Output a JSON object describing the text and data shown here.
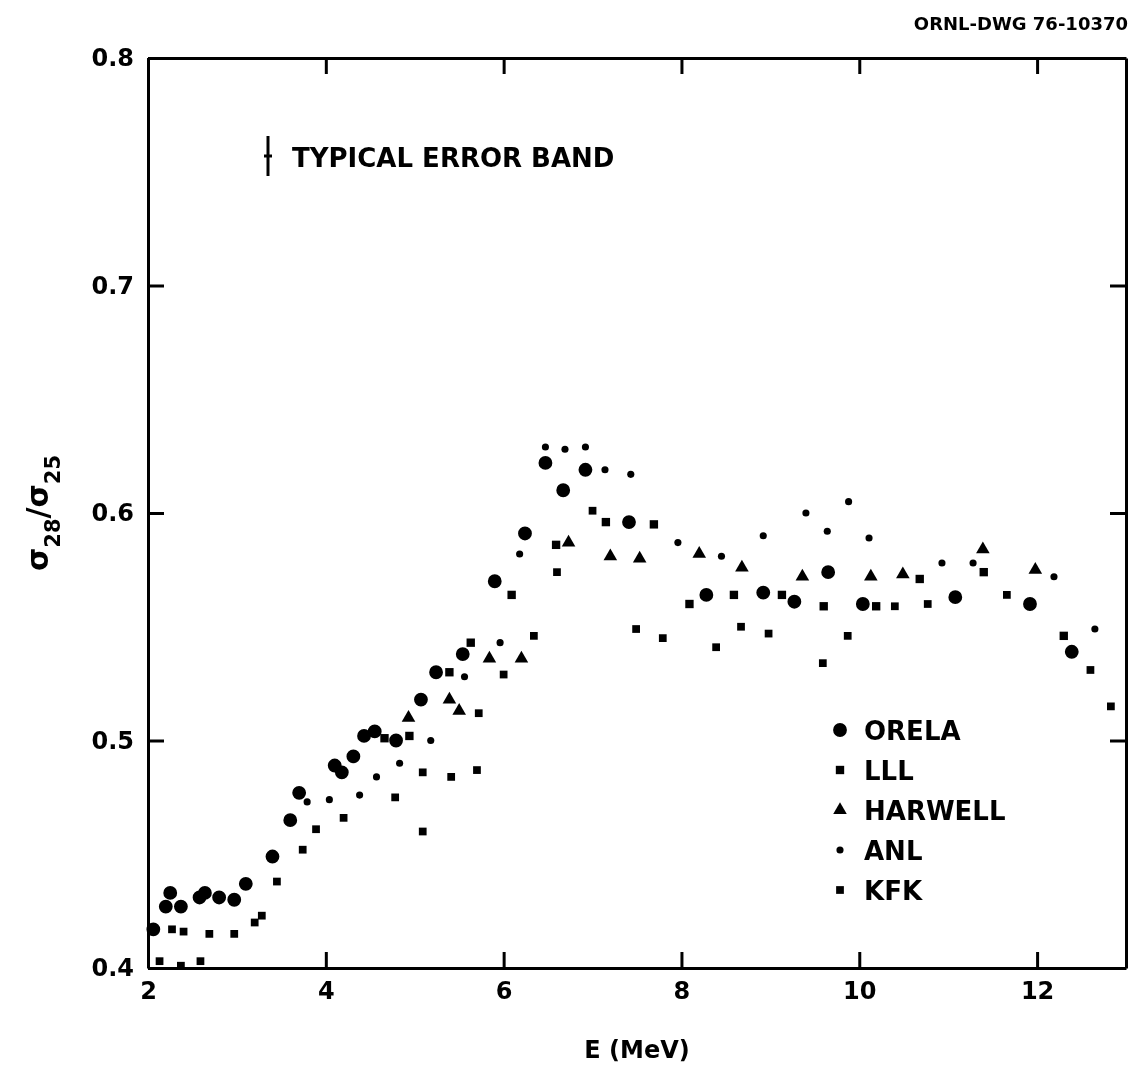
{
  "chart_data": {
    "type": "scatter",
    "xlabel": "E (MeV)",
    "ylabel": "σ$_{28}$/σ$_{25}$",
    "annotations": [
      "ORNL-DWG 76-10370",
      "TYPICAL ERROR BAND"
    ],
    "xlim": [
      2,
      13
    ],
    "xticks": [
      2,
      4,
      6,
      8,
      10,
      12
    ],
    "ylim": [
      0.4,
      0.8
    ],
    "yticks": [
      0.4,
      0.5,
      0.6,
      0.7,
      0.8
    ],
    "grid": false,
    "legend": "bottom right",
    "series": [
      {
        "name": "ORELA",
        "color": "#000000",
        "marker": "circle",
        "x": [
          2.06,
          2.2,
          2.25,
          2.37,
          2.58,
          2.64,
          2.8,
          2.97,
          3.1,
          3.4,
          3.6,
          3.7,
          4.1,
          4.18,
          4.31,
          4.43,
          4.55,
          4.79,
          5.07,
          5.24,
          5.54,
          5.9,
          6.24,
          6.47,
          6.67,
          6.92,
          7.41,
          8.28,
          8.92,
          9.27,
          9.65,
          10.04,
          11.08,
          11.92,
          12.39
        ],
        "values": [
          0.417,
          0.427,
          0.433,
          0.427,
          0.431,
          0.433,
          0.431,
          0.43,
          0.437,
          0.449,
          0.465,
          0.477,
          0.489,
          0.486,
          0.493,
          0.502,
          0.504,
          0.5,
          0.518,
          0.53,
          0.538,
          0.57,
          0.591,
          0.622,
          0.61,
          0.619,
          0.596,
          0.564,
          0.565,
          0.561,
          0.574,
          0.56,
          0.563,
          0.56,
          0.539
        ]
      },
      {
        "name": "LLL",
        "color": "#000000",
        "marker": "square",
        "x": [
          4.66,
          4.94,
          5.39,
          5.63,
          6.09,
          6.59,
          7.15,
          7.69,
          8.09,
          8.59,
          9.13,
          9.6,
          10.19,
          10.68,
          11.4,
          12.3
        ],
        "values": [
          0.501,
          0.502,
          0.53,
          0.543,
          0.564,
          0.586,
          0.596,
          0.595,
          0.56,
          0.564,
          0.564,
          0.559,
          0.559,
          0.571,
          0.574,
          0.546
        ]
      },
      {
        "name": "HARWELL",
        "color": "#000000",
        "marker": "triangle",
        "x": [
          4.93,
          5.39,
          5.5,
          5.84,
          6.2,
          6.73,
          7.2,
          7.53,
          8.2,
          8.68,
          9.36,
          10.13,
          10.49,
          11.39,
          11.98
        ],
        "values": [
          0.51,
          0.518,
          0.513,
          0.536,
          0.536,
          0.587,
          0.581,
          0.58,
          0.582,
          0.576,
          0.572,
          0.572,
          0.573,
          0.584,
          0.575
        ]
      },
      {
        "name": "ANL",
        "color": "#000000",
        "marker": "circle",
        "x": [
          3.79,
          4.04,
          4.38,
          4.57,
          4.83,
          5.18,
          5.56,
          5.96,
          6.18,
          6.47,
          6.69,
          6.92,
          7.14,
          7.43,
          7.96,
          8.45,
          8.92,
          9.4,
          9.64,
          9.88,
          10.11,
          10.93,
          11.28,
          12.19,
          12.65
        ],
        "values": [
          0.473,
          0.474,
          0.476,
          0.484,
          0.49,
          0.5,
          0.528,
          0.543,
          0.582,
          0.629,
          0.628,
          0.629,
          0.619,
          0.617,
          0.587,
          0.581,
          0.59,
          0.6,
          0.592,
          0.605,
          0.589,
          0.578,
          0.578,
          0.572,
          0.549
        ]
      },
      {
        "name": "KFK",
        "color": "#000000",
        "marker": "square",
        "x": [
          2.13,
          2.27,
          2.37,
          2.4,
          2.59,
          2.69,
          2.97,
          3.2,
          3.28,
          3.45,
          3.74,
          3.89,
          4.2,
          4.78,
          5.09,
          5.09,
          5.41,
          5.7,
          5.72,
          6.0,
          6.34,
          6.6,
          7.0,
          7.49,
          7.79,
          8.39,
          8.67,
          8.98,
          9.59,
          9.87,
          10.4,
          10.77,
          11.66,
          12.6,
          12.83
        ],
        "values": [
          0.403,
          0.417,
          0.401,
          0.416,
          0.403,
          0.415,
          0.415,
          0.42,
          0.423,
          0.438,
          0.452,
          0.461,
          0.466,
          0.475,
          0.486,
          0.46,
          0.484,
          0.487,
          0.512,
          0.529,
          0.546,
          0.574,
          0.601,
          0.549,
          0.545,
          0.541,
          0.55,
          0.547,
          0.534,
          0.546,
          0.559,
          0.56,
          0.564,
          0.531,
          0.515
        ]
      }
    ]
  }
}
